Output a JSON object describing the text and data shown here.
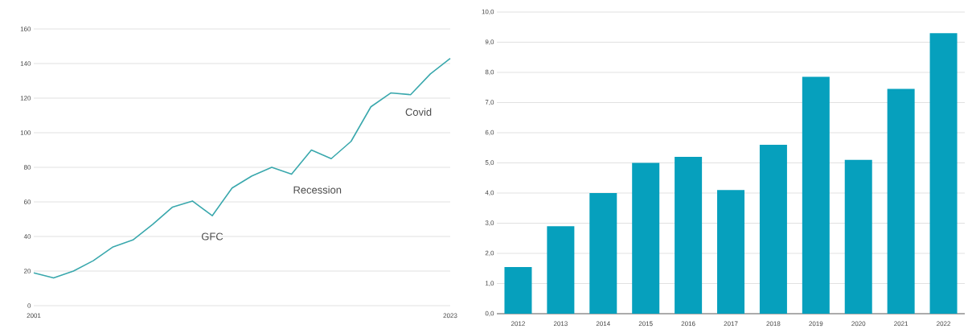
{
  "chart_data": [
    {
      "type": "line",
      "categories": [
        "2001",
        null,
        null,
        null,
        null,
        null,
        null,
        null,
        null,
        null,
        null,
        null,
        null,
        null,
        null,
        null,
        null,
        null,
        null,
        null,
        null,
        "2023"
      ],
      "values": [
        19,
        16,
        20,
        26,
        34,
        38,
        47,
        57,
        60.5,
        52,
        68,
        75,
        80,
        76,
        90,
        85,
        95,
        115,
        123,
        122,
        134,
        143
      ],
      "color": "#3aa8ad",
      "ylim": [
        0,
        160
      ],
      "yticks": [
        0,
        20,
        40,
        60,
        80,
        100,
        120,
        140,
        160
      ],
      "grid": "y",
      "annotations": [
        "GFC",
        "Recession",
        "Covid"
      ]
    },
    {
      "type": "bar",
      "categories": [
        "2012",
        "2013",
        "2014",
        "2015",
        "2016",
        "2017",
        "2018",
        "2019",
        "2020",
        "2021",
        "2022"
      ],
      "values": [
        1.55,
        2.9,
        4.0,
        5.0,
        5.2,
        4.1,
        5.6,
        7.85,
        5.1,
        7.45,
        9.3
      ],
      "color": "#06a0bd",
      "ylim": [
        0,
        10
      ],
      "grid": "y",
      "yticks": [
        {
          "value": 0,
          "label": "0,0"
        },
        {
          "value": 1,
          "label": "1,0"
        },
        {
          "value": 2,
          "label": "2,0"
        },
        {
          "value": 3,
          "label": "3,0"
        },
        {
          "value": 4,
          "label": "4,0"
        },
        {
          "value": 5,
          "label": "5,0"
        },
        {
          "value": 6,
          "label": "6,0"
        },
        {
          "value": 7,
          "label": "7,0"
        },
        {
          "value": 8,
          "label": "8,0"
        },
        {
          "value": 9,
          "label": "9,0"
        },
        {
          "value": 10,
          "label": "10,0"
        }
      ]
    }
  ]
}
